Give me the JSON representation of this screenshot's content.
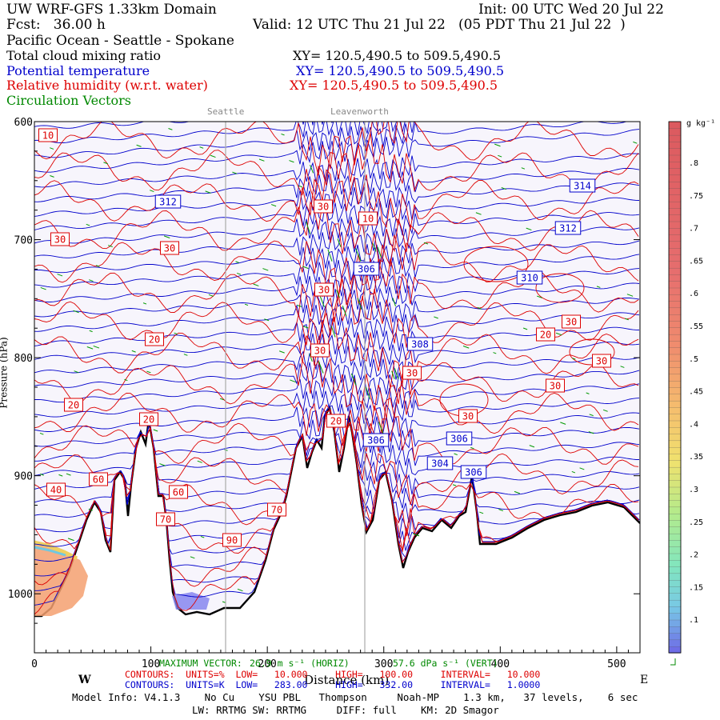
{
  "header": {
    "model": "UW WRF-GFS 1.33km Domain",
    "init": "Init: 00 UTC Wed 20 Jul 22",
    "fcst": "Fcst:   36.00 h",
    "valid": "Valid: 12 UTC Thu 21 Jul 22   (05 PDT Thu 21 Jul 22  )",
    "region": "Pacific Ocean - Seattle - Spokane"
  },
  "fields": [
    {
      "name": "Total cloud mixing ratio",
      "xy": "XY= 120.5,490.5 to 509.5,490.5",
      "color": "#000000"
    },
    {
      "name": "Potential temperature",
      "xy": "XY= 120.5,490.5 to 509.5,490.5",
      "color": "#0000cc"
    },
    {
      "name": "Relative humidity (w.r.t. water)",
      "xy": "XY= 120.5,490.5 to 509.5,490.5",
      "color": "#dd0000"
    },
    {
      "name": "Circulation Vectors",
      "xy": "",
      "color": "#008800"
    }
  ],
  "locations": [
    "Seattle",
    "Leavenworth"
  ],
  "chart_data": {
    "type": "cross-section",
    "xlabel": "Distance (km)",
    "ylabel": "Pressure (hPa)",
    "xlim": [
      0,
      520
    ],
    "ylim": [
      1050,
      600
    ],
    "x_ticks": [
      0,
      100,
      200,
      300,
      400,
      500
    ],
    "y_ticks": [
      600,
      700,
      800,
      900,
      1000
    ],
    "y_tick_labels": [
      "600",
      "700",
      "800",
      "900",
      "1000"
    ],
    "direction_labels": {
      "west": "W",
      "east": "E"
    },
    "theta_labels": [
      "314",
      "312",
      "312",
      "310",
      "308",
      "306",
      "306",
      "304",
      "306",
      "306"
    ],
    "rh_labels": [
      "10",
      "30",
      "30",
      "20",
      "20",
      "30",
      "30",
      "30",
      "30",
      "20",
      "20",
      "20",
      "30",
      "30",
      "30",
      "40",
      "60",
      "60",
      "70",
      "70",
      "90",
      "10",
      "30"
    ],
    "colorbar": {
      "unit": "g kg⁻¹",
      "labels": [
        ".8",
        ".75",
        ".7",
        ".65",
        ".6",
        ".55",
        ".5",
        ".45",
        ".4",
        ".35",
        ".3",
        ".25",
        ".2",
        ".15",
        ".1"
      ]
    }
  },
  "footer": {
    "max_vector_label": "MAXIMUM VECTOR:",
    "max_vector_horiz": "26.9 m s⁻¹ (HORIZ)",
    "max_vector_vert": "57.6 dPa s⁻¹ (VERT)",
    "rh_contours": "CONTOURS:  UNITS=%  LOW=   10.000     HIGH=   100.00     INTERVAL=   10.000",
    "theta_contours": "CONTOURS:  UNITS=K  LOW=   283.00     HIGH=   332.00     INTERVAL=   1.0000",
    "model_info": "Model Info: V4.1.3    No Cu    YSU PBL   Thompson     Noah-MP    1.3 km,   37 levels,    6 sec",
    "physics": "LW: RRTMG SW: RRTMG     DIFF: full    KM: 2D Smagor"
  }
}
